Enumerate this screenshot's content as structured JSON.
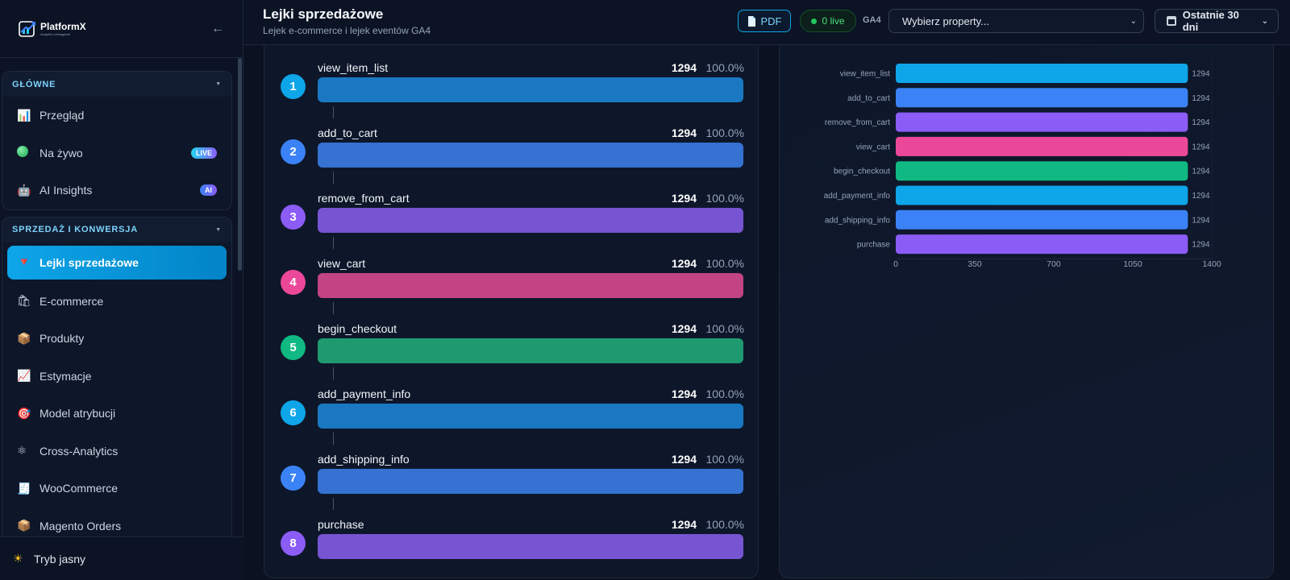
{
  "sidebar": {
    "logo_name": "PlatformX",
    "logo_tag": "Analytics reimagined",
    "groups": [
      {
        "title": "GŁÓWNE",
        "items": [
          {
            "label": "Przegląd",
            "icon": "📊"
          },
          {
            "label": "Na żywo",
            "icon": "green-dot",
            "badge": "LIVE"
          },
          {
            "label": "AI Insights",
            "icon": "🤖",
            "badge": "AI"
          }
        ]
      },
      {
        "title": "SPRZEDAŻ I KONWERSJA",
        "items": [
          {
            "label": "Lejki sprzedażowe",
            "icon": "🔻",
            "active": true
          },
          {
            "label": "E-commerce",
            "icon": "🛍"
          },
          {
            "label": "Produkty",
            "icon": "📦"
          },
          {
            "label": "Estymacje",
            "icon": "📈"
          },
          {
            "label": "Model atrybucji",
            "icon": "🎯"
          },
          {
            "label": "Cross-Analytics",
            "icon": "⚛"
          },
          {
            "label": "WooCommerce",
            "icon": "🧾"
          },
          {
            "label": "Magento Orders",
            "icon": "📦"
          }
        ]
      }
    ],
    "theme_toggle": "Tryb jasny"
  },
  "header": {
    "title": "Lejki sprzedażowe",
    "subtitle": "Lejek e-commerce i lejek eventów GA4",
    "pdf_label": "PDF",
    "live_label": "0 live",
    "ga4_label": "GA4",
    "property_placeholder": "Wybierz property...",
    "date_range": "Ostatnie 30 dni"
  },
  "funnel": {
    "steps": [
      {
        "num": "1",
        "name": "view_item_list",
        "count": "1294",
        "pct": "100.0%",
        "fraction": 1.0,
        "color": "#1a78c2",
        "num_color": "#0ea5e9"
      },
      {
        "num": "2",
        "name": "add_to_cart",
        "count": "1294",
        "pct": "100.0%",
        "fraction": 1.0,
        "color": "#3572d2",
        "num_color": "#3b82f6"
      },
      {
        "num": "3",
        "name": "remove_from_cart",
        "count": "1294",
        "pct": "100.0%",
        "fraction": 1.0,
        "color": "#7754d2",
        "num_color": "#8b5cf6"
      },
      {
        "num": "4",
        "name": "view_cart",
        "count": "1294",
        "pct": "100.0%",
        "fraction": 1.0,
        "color": "#c24485",
        "num_color": "#ec4899"
      },
      {
        "num": "5",
        "name": "begin_checkout",
        "count": "1294",
        "pct": "100.0%",
        "fraction": 1.0,
        "color": "#1f9a70",
        "num_color": "#10b981"
      },
      {
        "num": "6",
        "name": "add_payment_info",
        "count": "1294",
        "pct": "100.0%",
        "fraction": 1.0,
        "color": "#1a78c2",
        "num_color": "#0ea5e9"
      },
      {
        "num": "7",
        "name": "add_shipping_info",
        "count": "1294",
        "pct": "100.0%",
        "fraction": 1.0,
        "color": "#3572d2",
        "num_color": "#3b82f6"
      },
      {
        "num": "8",
        "name": "purchase",
        "count": "1294",
        "pct": "100.0%",
        "fraction": 1.0,
        "color": "#7754d2",
        "num_color": "#8b5cf6"
      }
    ]
  },
  "chart_data": {
    "type": "bar",
    "orientation": "horizontal",
    "categories": [
      "view_item_list",
      "add_to_cart",
      "remove_from_cart",
      "view_cart",
      "begin_checkout",
      "add_payment_info",
      "add_shipping_info",
      "purchase"
    ],
    "values": [
      1294,
      1294,
      1294,
      1294,
      1294,
      1294,
      1294,
      1294
    ],
    "value_labels": [
      "1294",
      "1294",
      "1294",
      "1294",
      "1294",
      "1294",
      "1294",
      "1294"
    ],
    "colors": [
      "#0ea5e9",
      "#3b82f6",
      "#8b5cf6",
      "#ec4899",
      "#10b981",
      "#0ea5e9",
      "#3b82f6",
      "#8b5cf6"
    ],
    "xlim": [
      0,
      1400
    ],
    "xticks": [
      0,
      350,
      700,
      1050,
      1400
    ],
    "xtick_labels": [
      "0",
      "350",
      "700",
      "1050",
      "1400"
    ],
    "grid": false,
    "title": "",
    "xlabel": "",
    "ylabel": ""
  }
}
